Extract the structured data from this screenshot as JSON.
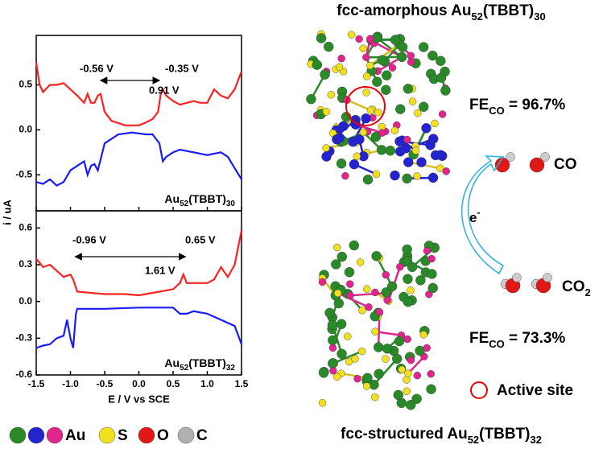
{
  "chart_data": [
    {
      "type": "line",
      "ylabel": "i / uA",
      "xlim": [
        -1.5,
        1.5
      ],
      "ylim": [
        -0.9,
        1.05
      ],
      "yticks": [
        0.5,
        {
          "value": 0,
          "label": "0.0"
        },
        -0.5
      ],
      "xticks": [
        -1.5,
        -1,
        -0.5,
        0,
        0.5,
        1,
        1.5
      ],
      "annotations": [
        "-0.56 V",
        "-0.35 V",
        "0.91 V"
      ],
      "label": [
        "Au",
        "52",
        "(TBBT)",
        "30"
      ],
      "series": [
        {
          "color": "#ff2020",
          "x": [
            -1.5,
            -1.45,
            -1.4,
            -1.3,
            -1.2,
            -1.1,
            -1,
            -0.9,
            -0.8,
            -0.75,
            -0.7,
            -0.65,
            -0.6,
            -0.56,
            -0.5,
            -0.4,
            -0.2,
            0,
            0.1,
            0.2,
            0.28,
            0.32,
            0.35,
            0.4,
            0.5,
            0.6,
            0.7,
            0.8,
            0.9,
            1,
            1.1,
            1.2,
            1.3,
            1.4,
            1.5
          ],
          "values": [
            0.75,
            0.5,
            0.42,
            0.5,
            0.5,
            0.52,
            0.45,
            0.38,
            0.3,
            0.4,
            0.3,
            0.3,
            0.38,
            0.4,
            0.2,
            0.1,
            0.05,
            0.05,
            0.08,
            0.12,
            0.2,
            0.4,
            0.45,
            0.38,
            0.32,
            0.28,
            0.3,
            0.32,
            0.3,
            0.3,
            0.45,
            0.38,
            0.35,
            0.45,
            0.65
          ]
        },
        {
          "color": "#1a1aff",
          "x": [
            -1.5,
            -1.4,
            -1.3,
            -1.2,
            -1.1,
            -1,
            -0.9,
            -0.8,
            -0.75,
            -0.7,
            -0.65,
            -0.6,
            -0.55,
            -0.5,
            -0.4,
            -0.3,
            -0.1,
            0.1,
            0.2,
            0.3,
            0.35,
            0.4,
            0.5,
            0.6,
            0.8,
            1,
            1.2,
            1.3,
            1.5
          ],
          "values": [
            -0.58,
            -0.6,
            -0.55,
            -0.62,
            -0.58,
            -0.45,
            -0.4,
            -0.35,
            -0.5,
            -0.4,
            -0.38,
            -0.45,
            -0.3,
            -0.15,
            -0.1,
            -0.05,
            -0.03,
            -0.05,
            -0.05,
            -0.15,
            -0.35,
            -0.3,
            -0.25,
            -0.22,
            -0.25,
            -0.28,
            -0.25,
            -0.3,
            -0.55
          ]
        }
      ]
    },
    {
      "type": "line",
      "xlabel": "E / V vs SCE",
      "xlim": [
        -1.5,
        1.5
      ],
      "ylim": [
        -0.6,
        0.74
      ],
      "yticks": [
        0.6,
        0.3,
        {
          "value": 0,
          "label": "0.0"
        },
        -0.3,
        -0.6
      ],
      "xticks": [
        -1.5,
        {
          "value": -1,
          "label": "-1.0"
        },
        -0.5,
        {
          "value": 0,
          "label": "0.0"
        },
        0.5,
        {
          "value": 1,
          "label": "1.0"
        },
        1.5
      ],
      "annotations": [
        "-0.96 V",
        "0.65 V",
        "1.61 V"
      ],
      "label": [
        "Au",
        "52",
        "(TBBT)",
        "32"
      ],
      "series": [
        {
          "color": "#ff2020",
          "x": [
            -1.5,
            -1.4,
            -1.3,
            -1.2,
            -1.1,
            -1,
            -0.96,
            -0.9,
            -0.7,
            -0.5,
            -0.2,
            0,
            0.3,
            0.5,
            0.6,
            0.65,
            0.7,
            0.8,
            1,
            1.1,
            1.2,
            1.3,
            1.4,
            1.5
          ],
          "values": [
            0.35,
            0.28,
            0.3,
            0.25,
            0.2,
            0.22,
            0.18,
            0.08,
            0.07,
            0.06,
            0.06,
            0.05,
            0.08,
            0.1,
            0.15,
            0.22,
            0.15,
            0.15,
            0.15,
            0.18,
            0.28,
            0.2,
            0.3,
            0.58
          ]
        },
        {
          "color": "#1a1aff",
          "x": [
            -1.5,
            -1.4,
            -1.3,
            -1.2,
            -1.1,
            -1.05,
            -1,
            -0.96,
            -0.92,
            -0.9,
            -0.5,
            0,
            0.3,
            0.5,
            0.6,
            0.7,
            0.8,
            1,
            1.2,
            1.4,
            1.5
          ],
          "values": [
            -0.38,
            -0.36,
            -0.35,
            -0.3,
            -0.28,
            -0.15,
            -0.3,
            -0.38,
            -0.1,
            -0.06,
            -0.06,
            -0.05,
            -0.05,
            -0.05,
            -0.1,
            -0.1,
            -0.08,
            -0.1,
            -0.15,
            -0.2,
            -0.35
          ]
        }
      ]
    }
  ],
  "figure": {
    "top_title": [
      "fcc-amorphous Au",
      "52",
      "(TBBT)",
      "30"
    ],
    "bottom_title": [
      "fcc-structured Au",
      "52",
      "(TBBT)",
      "32"
    ],
    "fe_top": [
      "FE",
      "CO",
      " = 96.7%"
    ],
    "fe_bottom": [
      "FE",
      "CO",
      " = 73.3%"
    ],
    "product": "CO",
    "reactant": [
      "CO",
      "2"
    ],
    "electron": [
      "e",
      "-"
    ],
    "active_site": "Active site",
    "legend": [
      {
        "colors": [
          "#2a8a2a",
          "#2323d0",
          "#e0268c"
        ],
        "label": "Au"
      },
      {
        "colors": [
          "#f0e020"
        ],
        "label": "S"
      },
      {
        "colors": [
          "#e01818"
        ],
        "label": "O"
      },
      {
        "colors": [
          "#b0b0b0"
        ],
        "label": "C"
      }
    ]
  }
}
